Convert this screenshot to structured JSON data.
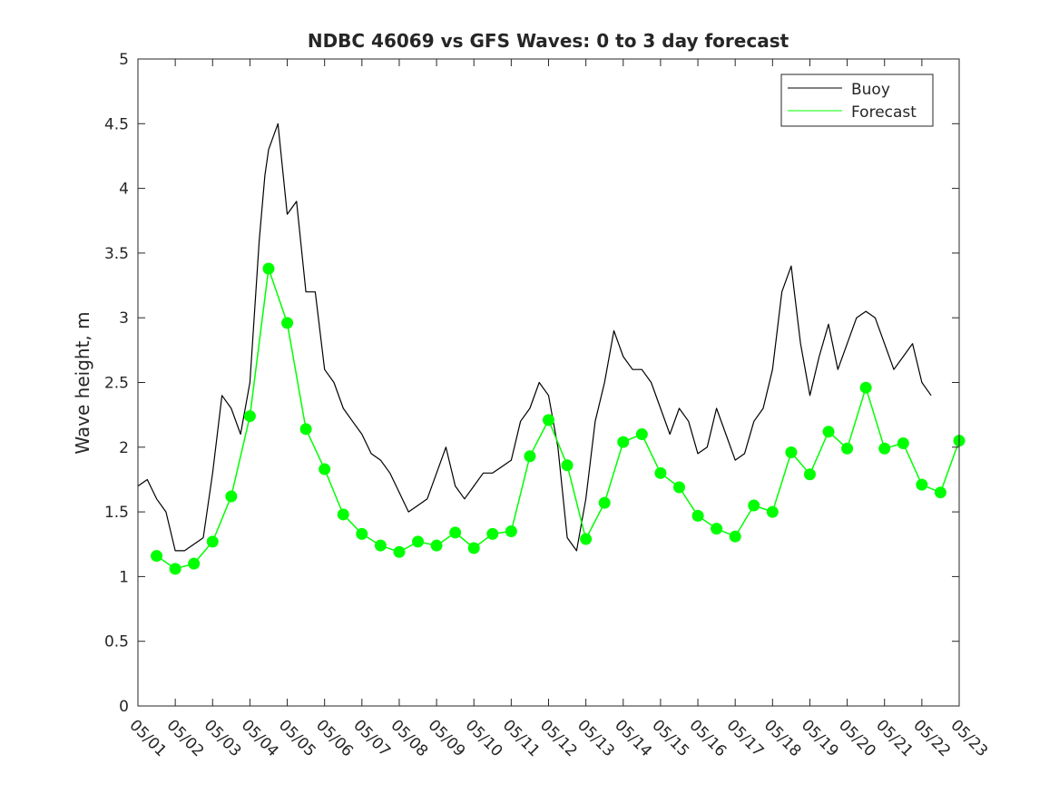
{
  "chart_data": {
    "type": "line",
    "title": "NDBC 46069 vs GFS Waves: 0 to 3 day forecast",
    "xlabel": "",
    "ylabel": "Wave height, m",
    "xlim": [
      0,
      22
    ],
    "ylim": [
      0,
      5
    ],
    "yticks": [
      "0",
      "0.5",
      "1",
      "1.5",
      "2",
      "2.5",
      "3",
      "3.5",
      "4",
      "4.5",
      "5"
    ],
    "xticks": [
      "05/01",
      "05/02",
      "05/03",
      "05/04",
      "05/05",
      "05/06",
      "05/07",
      "05/08",
      "05/09",
      "05/10",
      "05/11",
      "05/12",
      "05/13",
      "05/14",
      "05/15",
      "05/16",
      "05/17",
      "05/18",
      "05/19",
      "05/20",
      "05/21",
      "05/22",
      "05/23"
    ],
    "grid": false,
    "legend": {
      "placement": "top-right",
      "entries": [
        "Buoy",
        "Forecast"
      ]
    },
    "colors": {
      "buoy": "#000000",
      "forecast": "#00ff00"
    },
    "series": [
      {
        "name": "Buoy",
        "x": [
          0,
          0.25,
          0.5,
          0.75,
          1.0,
          1.25,
          1.5,
          1.75,
          2.0,
          2.25,
          2.5,
          2.75,
          3.0,
          3.25,
          3.4,
          3.5,
          3.75,
          4.0,
          4.25,
          4.5,
          4.75,
          5.0,
          5.25,
          5.5,
          5.75,
          6.0,
          6.25,
          6.5,
          6.75,
          7.0,
          7.25,
          7.5,
          7.75,
          8.0,
          8.25,
          8.5,
          8.75,
          9.0,
          9.25,
          9.5,
          9.75,
          10.0,
          10.25,
          10.5,
          10.75,
          11.0,
          11.25,
          11.5,
          11.75,
          12.0,
          12.25,
          12.5,
          12.75,
          13.0,
          13.25,
          13.5,
          13.75,
          14.0,
          14.25,
          14.5,
          14.75,
          15.0,
          15.25,
          15.5,
          15.75,
          16.0,
          16.25,
          16.5,
          16.75,
          17.0,
          17.25,
          17.5,
          17.75,
          18.0,
          18.25,
          18.5,
          18.75,
          19.0,
          19.25,
          19.5,
          19.75,
          20.0,
          20.25,
          20.5,
          20.75,
          21.0,
          21.25
        ],
        "values": [
          1.7,
          1.75,
          1.6,
          1.5,
          1.2,
          1.2,
          1.25,
          1.3,
          1.8,
          2.4,
          2.3,
          2.1,
          2.5,
          3.6,
          4.1,
          4.3,
          4.5,
          3.8,
          3.9,
          3.2,
          3.2,
          2.6,
          2.5,
          2.3,
          2.2,
          2.1,
          1.95,
          1.9,
          1.8,
          1.65,
          1.5,
          1.55,
          1.6,
          1.8,
          2.0,
          1.7,
          1.6,
          1.7,
          1.8,
          1.8,
          1.85,
          1.9,
          2.2,
          2.3,
          2.5,
          2.4,
          2.0,
          1.3,
          1.2,
          1.6,
          2.2,
          2.5,
          2.9,
          2.7,
          2.6,
          2.6,
          2.5,
          2.3,
          2.1,
          2.3,
          2.2,
          1.95,
          2.0,
          2.3,
          2.1,
          1.9,
          1.95,
          2.2,
          2.3,
          2.6,
          3.2,
          3.4,
          2.8,
          2.4,
          2.7,
          2.95,
          2.6,
          2.8,
          3.0,
          3.05,
          3.0,
          2.8,
          2.6,
          2.7,
          2.8,
          2.5,
          2.4
        ]
      },
      {
        "name": "Forecast",
        "x": [
          0.5,
          1.0,
          1.5,
          2.0,
          2.5,
          3.0,
          3.5,
          4.0,
          4.5,
          5.0,
          5.5,
          6.0,
          6.5,
          7.0,
          7.5,
          8.0,
          8.5,
          9.0,
          9.5,
          10.0,
          10.5,
          11.0,
          11.5,
          12.0,
          12.5,
          13.0,
          13.5,
          14.0,
          14.5,
          15.0,
          15.5,
          16.0,
          16.5,
          17.0,
          17.5,
          18.0,
          18.5,
          19.0,
          19.5,
          20.0,
          20.5,
          21.0,
          21.5,
          22.0
        ],
        "values": [
          1.16,
          1.06,
          1.1,
          1.27,
          1.62,
          2.24,
          3.38,
          2.96,
          2.14,
          1.83,
          1.48,
          1.33,
          1.24,
          1.19,
          1.27,
          1.24,
          1.34,
          1.22,
          1.33,
          1.35,
          1.93,
          2.21,
          1.86,
          1.29,
          1.57,
          2.04,
          2.1,
          1.8,
          1.69,
          1.47,
          1.37,
          1.31,
          1.55,
          1.5,
          1.96,
          1.79,
          2.12,
          1.99,
          2.46,
          1.99,
          2.03,
          1.71,
          1.65,
          2.05
        ]
      }
    ]
  }
}
